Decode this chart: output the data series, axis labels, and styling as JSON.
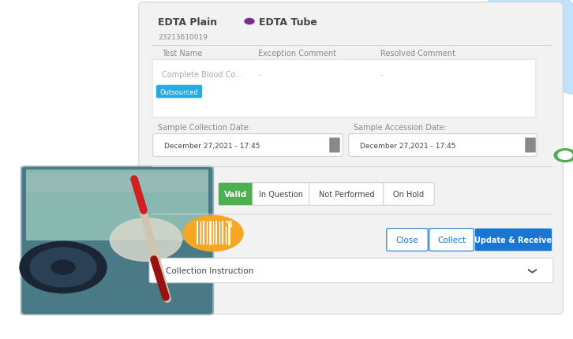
{
  "bg_color": "#ffffff",
  "card_color": "#f2f2f2",
  "title1": "EDTA Plain",
  "subtitle1": "23213610019",
  "dot_color": "#7B2D8B",
  "title2": "EDTA Tube",
  "col_headers": [
    "Test Name",
    "Exception Comment",
    "Resolved Comment"
  ],
  "table_row": [
    "Complete Blood Co...",
    "-",
    "-"
  ],
  "badge_text": "Outsourced",
  "badge_color": "#29ABE2",
  "badge_text_color": "#ffffff",
  "date_label1": "Sample Collection Date:",
  "date_label2": "Sample Accession Date:",
  "date_value": "December 27,2021 - 17:45",
  "btn_valid_color": "#4CAF50",
  "btn_valid_text": "Valid",
  "btn_others": [
    "In Question",
    "Not Performed",
    "On Hold"
  ],
  "btn_close_text": "Close",
  "btn_collect_text": "Collect",
  "btn_update_text": "Update & Receive",
  "btn_update_color": "#1976D2",
  "btn_border_color": "#1976D2",
  "collection_text": "Collection Instruction",
  "table_border": "#e0e0e0",
  "input_border": "#cccccc",
  "text_dark": "#444444",
  "text_medium": "#888888",
  "circle_color": "#4CAF50",
  "blue_shape_color": "#90CAF9",
  "barcode_circle_color": "#F5A623",
  "barcode_icon_color": "#ffffff",
  "photo_colors": {
    "bg_top": "#b8d8d0",
    "bg_bottom": "#4a7a8a",
    "centrifuge_outer": "#2a3a4a",
    "centrifuge_inner": "#3a5a70",
    "tube_red": "#cc2222",
    "tube_body": "#d8cfc0",
    "tube_blood": "#881111",
    "hand": "#d0d5c0",
    "teal_bg": "#5a9a9a"
  }
}
